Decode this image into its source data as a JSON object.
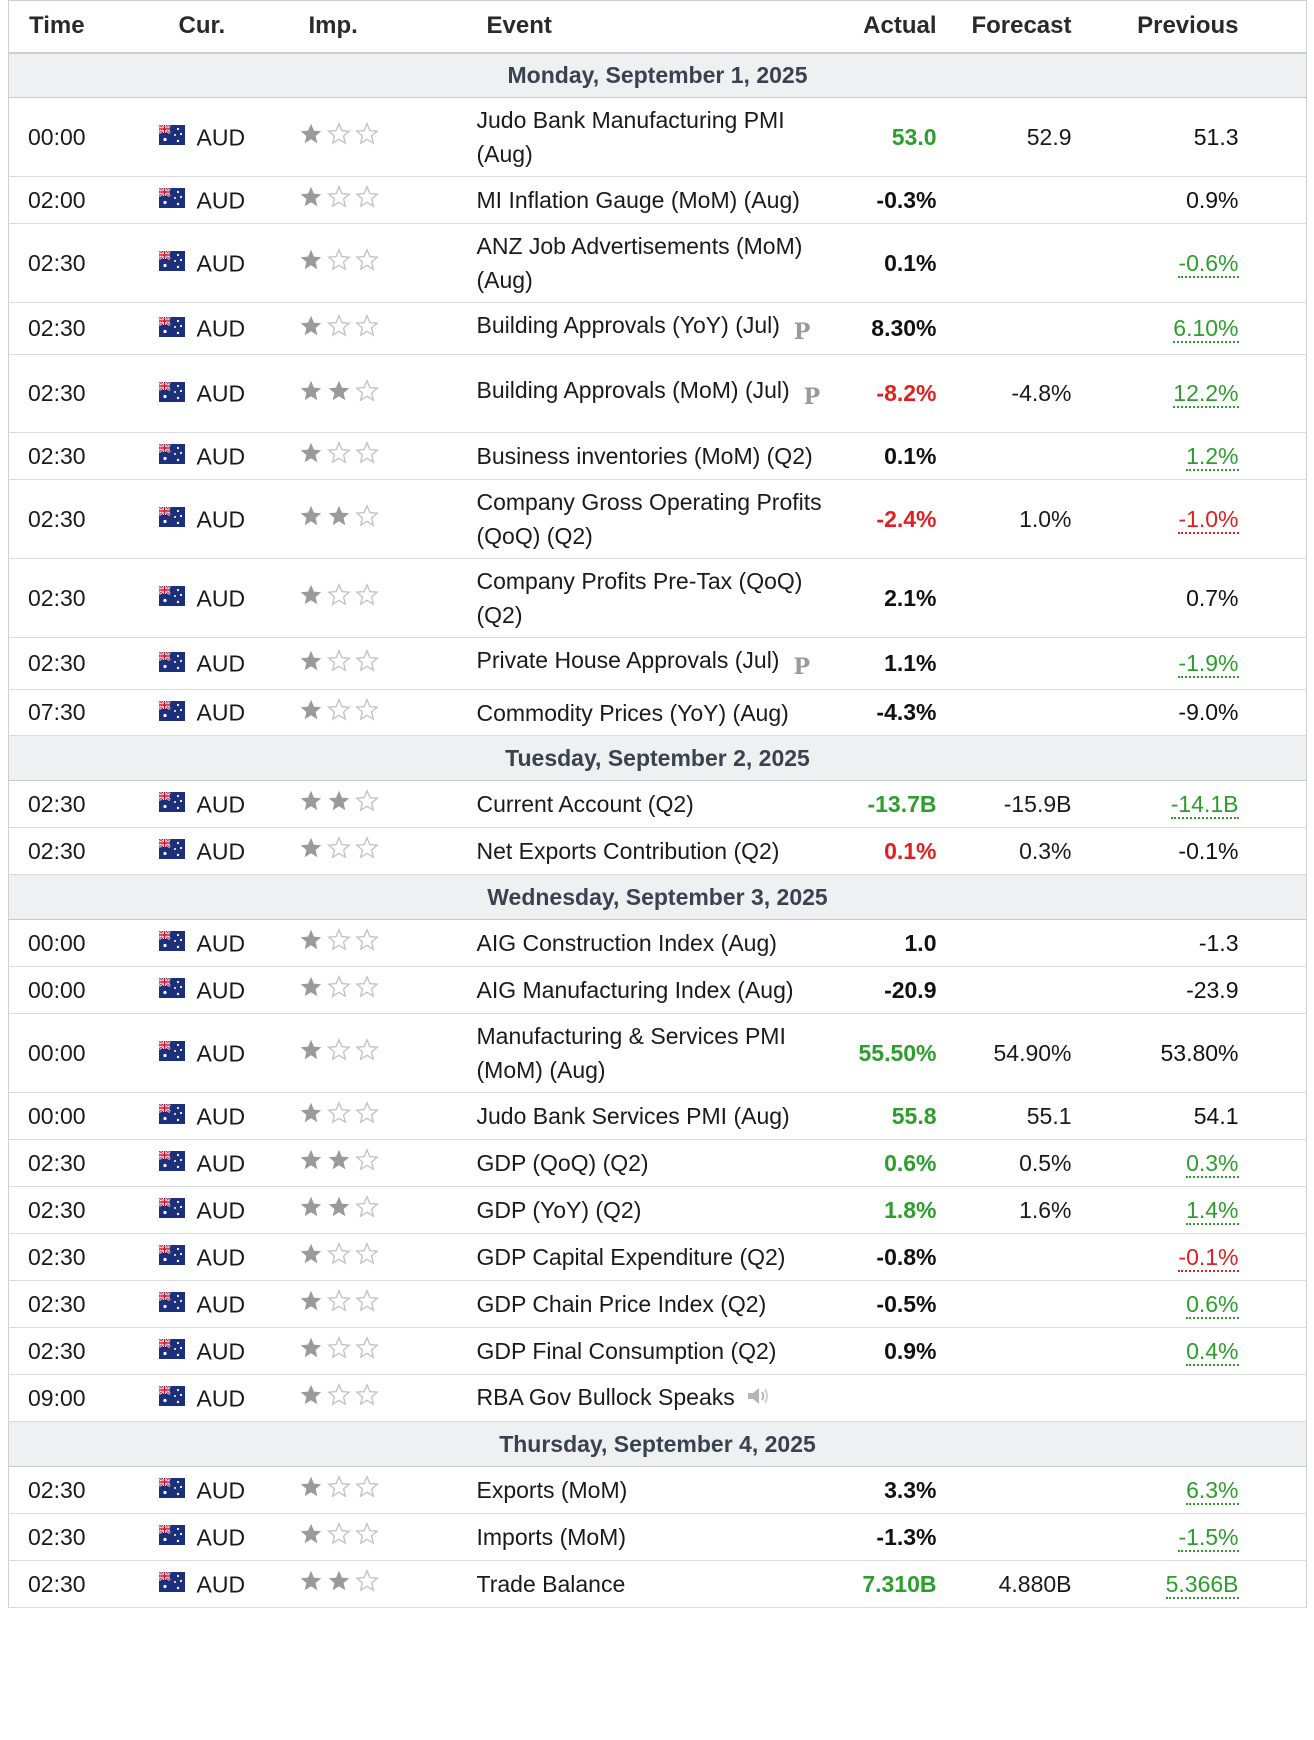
{
  "headers": {
    "time": "Time",
    "currency": "Cur.",
    "importance": "Imp.",
    "event": "Event",
    "actual": "Actual",
    "forecast": "Forecast",
    "previous": "Previous"
  },
  "colors": {
    "positive": "#2d9e2d",
    "negative": "#e02020",
    "neutral": "#111111",
    "day_header_bg": "#eef0f2"
  },
  "icons": {
    "flag": "australia-flag-icon",
    "star": "star-icon",
    "preliminary": "preliminary-p-icon",
    "speech": "speaker-icon"
  },
  "days": [
    {
      "label": "Monday, September 1, 2025",
      "events": [
        {
          "time": "00:00",
          "currency": "AUD",
          "importance": 1,
          "event": "Judo Bank Manufacturing PMI (Aug)",
          "actual": "53.0",
          "actual_tone": "g",
          "forecast": "52.9",
          "previous": "51.3",
          "previous_tone": "k",
          "previous_underline": false,
          "prelim": false,
          "speech": false,
          "rowh": 77
        },
        {
          "time": "02:00",
          "currency": "AUD",
          "importance": 1,
          "event": "MI Inflation Gauge (MoM) (Aug)",
          "actual": "-0.3%",
          "actual_tone": "k",
          "forecast": "",
          "previous": "0.9%",
          "previous_tone": "k",
          "previous_underline": false,
          "prelim": false,
          "speech": false,
          "rowh": 47
        },
        {
          "time": "02:30",
          "currency": "AUD",
          "importance": 1,
          "event": "ANZ Job Advertisements (MoM) (Aug)",
          "actual": "0.1%",
          "actual_tone": "k",
          "forecast": "",
          "previous": "-0.6%",
          "previous_tone": "g",
          "previous_underline": true,
          "prelim": false,
          "speech": false,
          "rowh": 78
        },
        {
          "time": "02:30",
          "currency": "AUD",
          "importance": 1,
          "event": "Building Approvals (YoY) (Jul)",
          "actual": "8.30%",
          "actual_tone": "k",
          "forecast": "",
          "previous": "6.10%",
          "previous_tone": "g",
          "previous_underline": true,
          "prelim": true,
          "prelim_mark": "P",
          "speech": false,
          "rowh": 47
        },
        {
          "time": "02:30",
          "currency": "AUD",
          "importance": 2,
          "event": "Building Approvals (MoM) (Jul)",
          "actual": "-8.2%",
          "actual_tone": "r",
          "forecast": "-4.8%",
          "previous": "12.2%",
          "previous_tone": "g",
          "previous_underline": true,
          "prelim": true,
          "prelim_mark": "P",
          "speech": false,
          "rowh": 78
        },
        {
          "time": "02:30",
          "currency": "AUD",
          "importance": 1,
          "event": "Business inventories (MoM) (Q2)",
          "actual": "0.1%",
          "actual_tone": "k",
          "forecast": "",
          "previous": "1.2%",
          "previous_tone": "g",
          "previous_underline": true,
          "prelim": false,
          "speech": false,
          "rowh": 47
        },
        {
          "time": "02:30",
          "currency": "AUD",
          "importance": 2,
          "event": "Company Gross Operating Profits (QoQ) (Q2)",
          "actual": "-2.4%",
          "actual_tone": "r",
          "forecast": "1.0%",
          "previous": "-1.0%",
          "previous_tone": "r",
          "previous_underline": true,
          "prelim": false,
          "speech": false,
          "rowh": 78
        },
        {
          "time": "02:30",
          "currency": "AUD",
          "importance": 1,
          "event": "Company Profits Pre-Tax (QoQ) (Q2)",
          "actual": "2.1%",
          "actual_tone": "k",
          "forecast": "",
          "previous": "0.7%",
          "previous_tone": "k",
          "previous_underline": false,
          "prelim": false,
          "speech": false,
          "rowh": 78
        },
        {
          "time": "02:30",
          "currency": "AUD",
          "importance": 1,
          "event": "Private House Approvals (Jul)",
          "actual": "1.1%",
          "actual_tone": "k",
          "forecast": "",
          "previous": "-1.9%",
          "previous_tone": "g",
          "previous_underline": true,
          "prelim": true,
          "prelim_mark": "P",
          "speech": false,
          "rowh": 47
        },
        {
          "time": "07:30",
          "currency": "AUD",
          "importance": 1,
          "event": "Commodity Prices (YoY) (Aug)",
          "actual": "-4.3%",
          "actual_tone": "k",
          "forecast": "",
          "previous": "-9.0%",
          "previous_tone": "k",
          "previous_underline": false,
          "prelim": false,
          "speech": false,
          "rowh": 46
        }
      ]
    },
    {
      "label": "Tuesday, September 2, 2025",
      "events": [
        {
          "time": "02:30",
          "currency": "AUD",
          "importance": 2,
          "event": "Current Account (Q2)",
          "actual": "-13.7B",
          "actual_tone": "g",
          "forecast": "-15.9B",
          "previous": "-14.1B",
          "previous_tone": "g",
          "previous_underline": true,
          "prelim": false,
          "speech": false,
          "rowh": 47
        },
        {
          "time": "02:30",
          "currency": "AUD",
          "importance": 1,
          "event": "Net Exports Contribution (Q2)",
          "actual": "0.1%",
          "actual_tone": "r",
          "forecast": "0.3%",
          "previous": "-0.1%",
          "previous_tone": "k",
          "previous_underline": false,
          "prelim": false,
          "speech": false,
          "rowh": 47
        }
      ]
    },
    {
      "label": "Wednesday, September 3, 2025",
      "events": [
        {
          "time": "00:00",
          "currency": "AUD",
          "importance": 1,
          "event": "AIG Construction Index (Aug)",
          "actual": "1.0",
          "actual_tone": "k",
          "forecast": "",
          "previous": "-1.3",
          "previous_tone": "k",
          "previous_underline": false,
          "prelim": false,
          "speech": false,
          "rowh": 47
        },
        {
          "time": "00:00",
          "currency": "AUD",
          "importance": 1,
          "event": "AIG Manufacturing Index (Aug)",
          "actual": "-20.9",
          "actual_tone": "k",
          "forecast": "",
          "previous": "-23.9",
          "previous_tone": "k",
          "previous_underline": false,
          "prelim": false,
          "speech": false,
          "rowh": 47
        },
        {
          "time": "00:00",
          "currency": "AUD",
          "importance": 1,
          "event": "Manufacturing & Services PMI (MoM) (Aug)",
          "actual": "55.50%",
          "actual_tone": "g",
          "forecast": "54.90%",
          "previous": "53.80%",
          "previous_tone": "k",
          "previous_underline": false,
          "prelim": false,
          "speech": false,
          "rowh": 78
        },
        {
          "time": "00:00",
          "currency": "AUD",
          "importance": 1,
          "event": "Judo Bank Services PMI (Aug)",
          "actual": "55.8",
          "actual_tone": "g",
          "forecast": "55.1",
          "previous": "54.1",
          "previous_tone": "k",
          "previous_underline": false,
          "prelim": false,
          "speech": false,
          "rowh": 47
        },
        {
          "time": "02:30",
          "currency": "AUD",
          "importance": 2,
          "event": "GDP (QoQ) (Q2)",
          "actual": "0.6%",
          "actual_tone": "g",
          "forecast": "0.5%",
          "previous": "0.3%",
          "previous_tone": "g",
          "previous_underline": true,
          "prelim": false,
          "speech": false,
          "rowh": 47
        },
        {
          "time": "02:30",
          "currency": "AUD",
          "importance": 2,
          "event": "GDP (YoY) (Q2)",
          "actual": "1.8%",
          "actual_tone": "g",
          "forecast": "1.6%",
          "previous": "1.4%",
          "previous_tone": "g",
          "previous_underline": true,
          "prelim": false,
          "speech": false,
          "rowh": 47
        },
        {
          "time": "02:30",
          "currency": "AUD",
          "importance": 1,
          "event": "GDP Capital Expenditure (Q2)",
          "actual": "-0.8%",
          "actual_tone": "k",
          "forecast": "",
          "previous": "-0.1%",
          "previous_tone": "r",
          "previous_underline": true,
          "prelim": false,
          "speech": false,
          "rowh": 47
        },
        {
          "time": "02:30",
          "currency": "AUD",
          "importance": 1,
          "event": "GDP Chain Price Index (Q2)",
          "actual": "-0.5%",
          "actual_tone": "k",
          "forecast": "",
          "previous": "0.6%",
          "previous_tone": "g",
          "previous_underline": true,
          "prelim": false,
          "speech": false,
          "rowh": 47
        },
        {
          "time": "02:30",
          "currency": "AUD",
          "importance": 1,
          "event": "GDP Final Consumption (Q2)",
          "actual": "0.9%",
          "actual_tone": "k",
          "forecast": "",
          "previous": "0.4%",
          "previous_tone": "g",
          "previous_underline": true,
          "prelim": false,
          "speech": false,
          "rowh": 47
        },
        {
          "time": "09:00",
          "currency": "AUD",
          "importance": 1,
          "event": "RBA Gov Bullock Speaks",
          "actual": "",
          "actual_tone": "k",
          "forecast": "",
          "previous": "",
          "previous_tone": "k",
          "previous_underline": false,
          "prelim": false,
          "speech": true,
          "rowh": 47
        }
      ]
    },
    {
      "label": "Thursday, September 4, 2025",
      "events": [
        {
          "time": "02:30",
          "currency": "AUD",
          "importance": 1,
          "event": "Exports (MoM)",
          "actual": "3.3%",
          "actual_tone": "k",
          "forecast": "",
          "previous": "6.3%",
          "previous_tone": "g",
          "previous_underline": true,
          "prelim": false,
          "speech": false,
          "rowh": 47
        },
        {
          "time": "02:30",
          "currency": "AUD",
          "importance": 1,
          "event": "Imports (MoM)",
          "actual": "-1.3%",
          "actual_tone": "k",
          "forecast": "",
          "previous": "-1.5%",
          "previous_tone": "g",
          "previous_underline": true,
          "prelim": false,
          "speech": false,
          "rowh": 47
        },
        {
          "time": "02:30",
          "currency": "AUD",
          "importance": 2,
          "event": "Trade Balance",
          "actual": "7.310B",
          "actual_tone": "g",
          "forecast": "4.880B",
          "previous": "5.366B",
          "previous_tone": "g",
          "previous_underline": true,
          "prelim": false,
          "speech": false,
          "rowh": 47
        }
      ]
    }
  ]
}
